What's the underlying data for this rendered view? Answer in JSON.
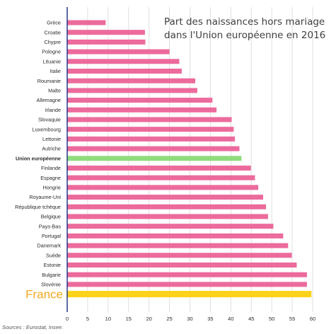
{
  "colors": {
    "bar": "#ec6a9c",
    "eu": "#8fdc7e",
    "france": "#ffd21a",
    "france_label": "#f6a81f",
    "axis": "#1a2a7a",
    "grid": "#d8d8d8",
    "text": "#2b2b2b"
  },
  "chart_data": {
    "type": "bar",
    "orientation": "horizontal",
    "title": "Part des naissances hors mariage dans l'Union européenne en 2016",
    "title_lines": [
      "Part des naissances hors mariage",
      "dans l'Union européenne en 2016"
    ],
    "categories": [
      "Grèce",
      "Croatie",
      "Chypre",
      "Pologne",
      "Lituanie",
      "Italie",
      "Roumanie",
      "Malte",
      "Allemagne",
      "Irlande",
      "Slovaquie",
      "Luxembourg",
      "Lettonie",
      "Autriche",
      "Union européenne",
      "Finlande",
      "Espagne",
      "Hongrie",
      "Royaume-Uni",
      "République tchèque",
      "Belgique",
      "Pays-Bas",
      "Portugal",
      "Danemark",
      "Suède",
      "Estonie",
      "Bulgarie",
      "Slovénie",
      "France"
    ],
    "values": [
      9.4,
      19.0,
      19.1,
      25.0,
      27.4,
      28.0,
      31.3,
      31.8,
      35.5,
      36.5,
      40.2,
      40.7,
      41.0,
      42.1,
      42.6,
      44.9,
      45.9,
      46.7,
      47.9,
      48.6,
      49.1,
      50.4,
      52.8,
      54.0,
      54.9,
      56.1,
      58.6,
      58.6,
      59.7
    ],
    "highlight": {
      "Union européenne": "eu",
      "France": "france"
    },
    "xlim": [
      0,
      60
    ],
    "xticks": [
      0,
      5,
      10,
      15,
      20,
      25,
      30,
      35,
      40,
      45,
      50,
      55,
      60
    ],
    "xlabel": "",
    "ylabel": "",
    "grid": true,
    "legend": "none"
  },
  "source": "Sources : Eurostat, Insee."
}
